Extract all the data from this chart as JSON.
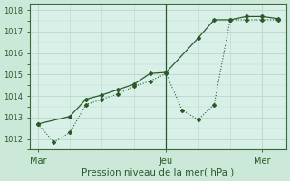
{
  "title": "",
  "xlabel": "Pression niveau de la mer( hPa )",
  "background_color": "#cce8d8",
  "plot_bg_color": "#d8f0e8",
  "grid_color": "#b8d8c8",
  "line_color": "#2a5a2a",
  "dot_color": "#2a5a2a",
  "xtick_labels": [
    "Mar",
    "Jeu",
    "Mer"
  ],
  "xtick_positions": [
    0,
    8,
    14
  ],
  "ytick_min": 1012,
  "ytick_max": 1018,
  "series1_x": [
    0,
    1,
    2,
    3,
    4,
    5,
    6,
    7,
    8,
    9,
    10,
    11,
    12,
    13,
    14,
    15
  ],
  "series1_y": [
    1012.7,
    1011.85,
    1012.3,
    1013.6,
    1013.85,
    1014.1,
    1014.45,
    1014.7,
    1015.05,
    1013.35,
    1012.9,
    1013.6,
    1017.55,
    1017.55,
    1017.55,
    1017.55
  ],
  "series2_x": [
    0,
    2,
    3,
    4,
    5,
    6,
    7,
    8,
    10,
    11,
    12,
    13,
    14,
    15
  ],
  "series2_y": [
    1012.7,
    1013.05,
    1013.85,
    1014.05,
    1014.3,
    1014.55,
    1015.05,
    1015.1,
    1016.7,
    1017.55,
    1017.55,
    1017.7,
    1017.7,
    1017.6
  ],
  "vline_x": 8,
  "xlim": [
    -0.5,
    15.5
  ],
  "ylim": [
    1011.5,
    1018.3
  ]
}
